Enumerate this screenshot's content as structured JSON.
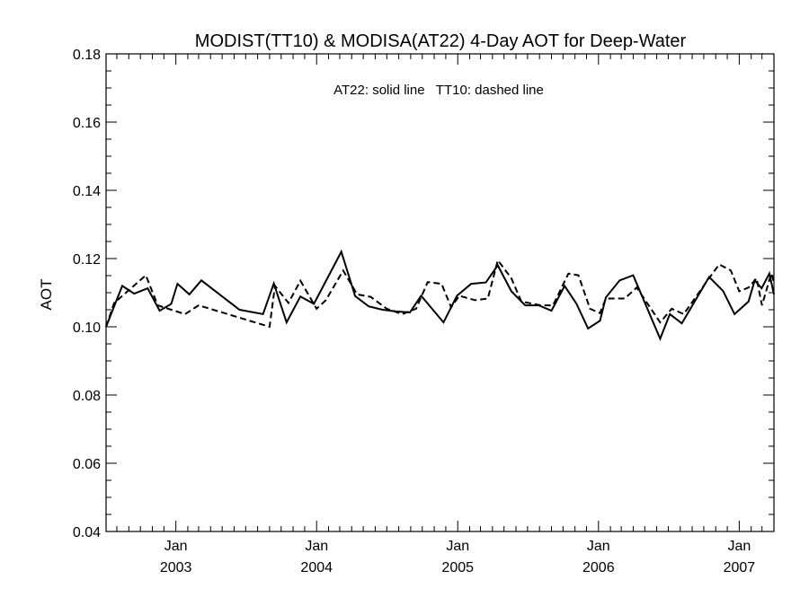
{
  "chart_data": {
    "type": "line",
    "title": "MODIST(TT10) & MODISA(AT22) 4-Day AOT for Deep-Water",
    "annotation": "AT22: solid line   TT10: dashed line",
    "ylabel": "AOT",
    "xlabel": "",
    "xlim": [
      "2002-07-04",
      "2007-04-01"
    ],
    "ylim": [
      0.04,
      0.18
    ],
    "y_ticks": [
      "0.04",
      "0.06",
      "0.08",
      "0.10",
      "0.12",
      "0.14",
      "0.16",
      "0.18"
    ],
    "x_ticks": [
      {
        "date": "2003-01-01",
        "month": "Jan",
        "year": "2003"
      },
      {
        "date": "2004-01-01",
        "month": "Jan",
        "year": "2004"
      },
      {
        "date": "2005-01-01",
        "month": "Jan",
        "year": "2005"
      },
      {
        "date": "2006-01-01",
        "month": "Jan",
        "year": "2006"
      },
      {
        "date": "2007-01-01",
        "month": "Jan",
        "year": "2007"
      }
    ],
    "grid": false,
    "series": [
      {
        "style": "solid",
        "points": [
          [
            "2002-07-04",
            0.1
          ],
          [
            "2002-08-15",
            0.112
          ],
          [
            "2002-09-15",
            0.1097
          ],
          [
            "2002-10-20",
            0.1113
          ],
          [
            "2002-11-20",
            0.1047
          ],
          [
            "2002-12-20",
            0.1067
          ],
          [
            "2003-01-05",
            0.1126
          ],
          [
            "2003-02-05",
            0.1095
          ],
          [
            "2003-03-08",
            0.1136
          ],
          [
            "2003-06-15",
            0.105
          ],
          [
            "2003-08-15",
            0.1037
          ],
          [
            "2003-09-12",
            0.1127
          ],
          [
            "2003-10-15",
            0.1013
          ],
          [
            "2003-11-20",
            0.1089
          ],
          [
            "2003-12-25",
            0.1067
          ],
          [
            "2004-03-05",
            0.122
          ],
          [
            "2004-04-10",
            0.109
          ],
          [
            "2004-05-15",
            0.106
          ],
          [
            "2004-06-20",
            0.105
          ],
          [
            "2004-07-25",
            0.1045
          ],
          [
            "2004-08-30",
            0.1042
          ],
          [
            "2004-09-28",
            0.1091
          ],
          [
            "2004-11-25",
            0.1013
          ],
          [
            "2004-12-30",
            0.1091
          ],
          [
            "2005-02-05",
            0.1126
          ],
          [
            "2005-03-15",
            0.113
          ],
          [
            "2005-04-15",
            0.118
          ],
          [
            "2005-05-20",
            0.1104
          ],
          [
            "2005-06-25",
            0.1063
          ],
          [
            "2005-07-30",
            0.1063
          ],
          [
            "2005-09-01",
            0.1047
          ],
          [
            "2005-10-05",
            0.112
          ],
          [
            "2005-11-05",
            0.1067
          ],
          [
            "2005-12-05",
            0.0995
          ],
          [
            "2006-01-05",
            0.1018
          ],
          [
            "2006-01-20",
            0.1086
          ],
          [
            "2006-02-25",
            0.1136
          ],
          [
            "2006-04-01",
            0.1151
          ],
          [
            "2006-06-10",
            0.0965
          ],
          [
            "2006-07-05",
            0.1037
          ],
          [
            "2006-08-05",
            0.101
          ],
          [
            "2006-10-15",
            0.1146
          ],
          [
            "2006-11-20",
            0.1105
          ],
          [
            "2006-12-20",
            0.1037
          ],
          [
            "2007-01-25",
            0.1074
          ],
          [
            "2007-02-10",
            0.1136
          ],
          [
            "2007-02-28",
            0.1113
          ],
          [
            "2007-03-20",
            0.1156
          ],
          [
            "2007-04-01",
            0.1095
          ]
        ]
      },
      {
        "style": "dashed",
        "points": [
          [
            "2002-07-04",
            0.1
          ],
          [
            "2002-07-25",
            0.107
          ],
          [
            "2002-09-01",
            0.1107
          ],
          [
            "2002-10-15",
            0.1151
          ],
          [
            "2002-11-15",
            0.1063
          ],
          [
            "2002-12-20",
            0.105
          ],
          [
            "2003-01-25",
            0.1037
          ],
          [
            "2003-03-01",
            0.1063
          ],
          [
            "2003-09-01",
            0.1
          ],
          [
            "2003-09-15",
            0.112
          ],
          [
            "2003-10-20",
            0.107
          ],
          [
            "2003-11-20",
            0.1135
          ],
          [
            "2004-01-01",
            0.1053
          ],
          [
            "2004-01-25",
            0.1078
          ],
          [
            "2004-03-10",
            0.1165
          ],
          [
            "2004-04-15",
            0.1095
          ],
          [
            "2004-05-20",
            0.1088
          ],
          [
            "2004-07-01",
            0.1053
          ],
          [
            "2004-08-10",
            0.1037
          ],
          [
            "2004-09-15",
            0.1053
          ],
          [
            "2004-10-15",
            0.1131
          ],
          [
            "2004-11-20",
            0.1126
          ],
          [
            "2004-12-15",
            0.1057
          ],
          [
            "2005-01-05",
            0.1091
          ],
          [
            "2005-02-15",
            0.1078
          ],
          [
            "2005-03-20",
            0.1083
          ],
          [
            "2005-04-15",
            0.1195
          ],
          [
            "2005-05-20",
            0.1142
          ],
          [
            "2005-06-15",
            0.1074
          ],
          [
            "2005-08-05",
            0.1063
          ],
          [
            "2005-09-05",
            0.1063
          ],
          [
            "2005-10-15",
            0.1156
          ],
          [
            "2005-11-10",
            0.1151
          ],
          [
            "2005-12-10",
            0.1053
          ],
          [
            "2006-01-05",
            0.104
          ],
          [
            "2006-01-20",
            0.1083
          ],
          [
            "2006-03-10",
            0.1083
          ],
          [
            "2006-04-10",
            0.1115
          ],
          [
            "2006-06-10",
            0.1013
          ],
          [
            "2006-07-10",
            0.1053
          ],
          [
            "2006-08-10",
            0.1037
          ],
          [
            "2006-10-10",
            0.1135
          ],
          [
            "2006-11-10",
            0.1183
          ],
          [
            "2006-12-10",
            0.1165
          ],
          [
            "2007-01-01",
            0.1104
          ],
          [
            "2007-01-25",
            0.1115
          ],
          [
            "2007-02-15",
            0.1142
          ],
          [
            "2007-03-01",
            0.1063
          ],
          [
            "2007-03-25",
            0.1156
          ],
          [
            "2007-04-01",
            0.1131
          ]
        ]
      }
    ]
  }
}
